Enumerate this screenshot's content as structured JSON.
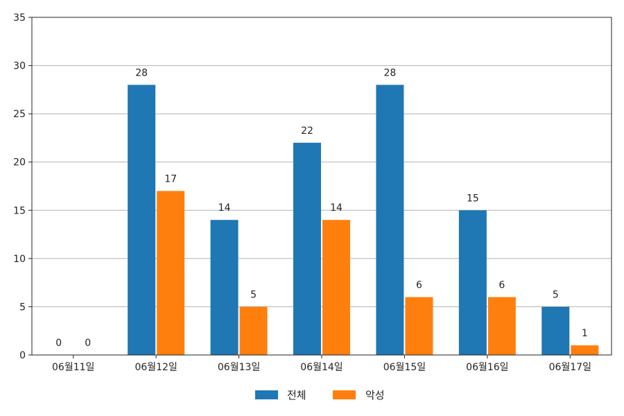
{
  "chart_data": {
    "type": "bar",
    "categories": [
      "06월11일",
      "06월12일",
      "06월13일",
      "06월14일",
      "06월15일",
      "06월16일",
      "06월17일"
    ],
    "series": [
      {
        "name": "전체",
        "values": [
          0,
          28,
          14,
          22,
          28,
          15,
          5
        ],
        "color": "#1f77b4"
      },
      {
        "name": "악성",
        "values": [
          0,
          17,
          5,
          14,
          6,
          6,
          1
        ],
        "color": "#ff7f0e"
      }
    ],
    "title": "",
    "xlabel": "",
    "ylabel": "",
    "ylim": [
      0,
      35
    ],
    "yticks": [
      0,
      5,
      10,
      15,
      20,
      25,
      30,
      35
    ],
    "grid": "horizontal",
    "legend_position": "bottom-center",
    "data_labels": true
  }
}
